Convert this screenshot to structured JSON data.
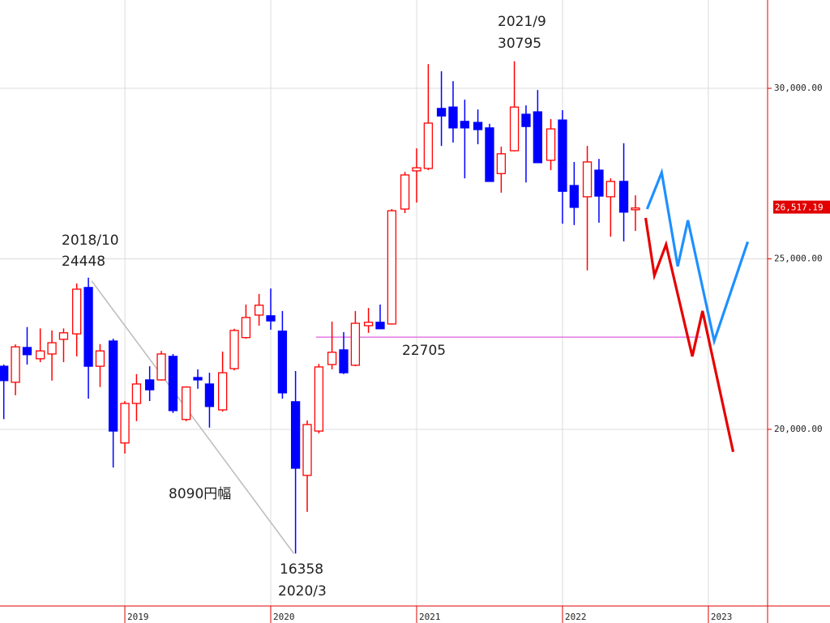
{
  "chart_data": {
    "type": "candlestick",
    "x": [
      2018.17,
      2018.25,
      2018.33,
      2018.42,
      2018.5,
      2018.58,
      2018.67,
      2018.75,
      2018.83,
      2018.92,
      2019,
      2019.08,
      2019.17,
      2019.25,
      2019.33,
      2019.42,
      2019.5,
      2019.58,
      2019.67,
      2019.75,
      2019.83,
      2019.92,
      2020,
      2020.08,
      2020.17,
      2020.25,
      2020.33,
      2020.42,
      2020.5,
      2020.58,
      2020.67,
      2020.75,
      2020.83,
      2020.92,
      2021,
      2021.08,
      2021.17,
      2021.25,
      2021.33,
      2021.42,
      2021.5,
      2021.58,
      2021.67,
      2021.75,
      2021.83,
      2021.92,
      2022,
      2022.08,
      2022.17,
      2022.25,
      2022.33,
      2022.42,
      2022.5
    ],
    "open": [
      21850,
      21380,
      22400,
      22070,
      22210,
      22640,
      22800,
      24160,
      21850,
      22590,
      19600,
      20760,
      21450,
      21450,
      22140,
      20290,
      21520,
      21330,
      20570,
      21780,
      22690,
      23350,
      23330,
      22880,
      20810,
      18650,
      19950,
      21900,
      22330,
      21880,
      23040,
      23140,
      23090,
      26460,
      27580,
      27650,
      29410,
      29450,
      29030,
      29000,
      28840,
      27500,
      28170,
      29240,
      29310,
      27890,
      29070,
      27150,
      26820,
      27600,
      26820,
      27270,
      26440
    ],
    "high": [
      21900,
      22490,
      23000,
      22960,
      22900,
      22960,
      24280,
      24448,
      22500,
      22660,
      20830,
      21620,
      21850,
      22300,
      22210,
      21260,
      21760,
      21660,
      22280,
      22950,
      23660,
      23970,
      24130,
      23470,
      21710,
      20260,
      21920,
      23160,
      22850,
      23470,
      23560,
      23660,
      26460,
      27550,
      28240,
      30710,
      30500,
      30210,
      29670,
      29380,
      28960,
      28290,
      30795,
      29500,
      29950,
      29100,
      29360,
      27840,
      28310,
      27930,
      27360,
      28390,
      26860
    ],
    "low": [
      20300,
      21000,
      21900,
      21970,
      21430,
      21970,
      22140,
      20900,
      21240,
      18880,
      19290,
      20240,
      20830,
      21430,
      20480,
      20240,
      21190,
      20050,
      20520,
      21730,
      22660,
      23040,
      22920,
      20900,
      16358,
      17580,
      19880,
      21760,
      21620,
      21850,
      22830,
      22950,
      23070,
      26340,
      26650,
      27600,
      28310,
      28410,
      27360,
      28360,
      27270,
      26940,
      28150,
      27240,
      27820,
      27600,
      26030,
      25990,
      24660,
      26060,
      25650,
      25510,
      25820
    ],
    "close": [
      21430,
      22420,
      22190,
      22300,
      22540,
      22830,
      24110,
      21850,
      22300,
      19950,
      20760,
      21330,
      21160,
      22210,
      20550,
      21240,
      21450,
      20670,
      21660,
      22900,
      23280,
      23640,
      23180,
      21070,
      18860,
      20140,
      21830,
      22260,
      21660,
      23110,
      23140,
      22950,
      26410,
      27460,
      27670,
      28980,
      29190,
      28840,
      28840,
      28790,
      27270,
      28080,
      29450,
      28880,
      27820,
      28810,
      26980,
      26510,
      27840,
      26840,
      27270,
      26370,
      26490
    ],
    "up_color": "#ff0000",
    "down_color": "#0000ff",
    "xlim": [
      2018.144,
      2023.406
    ],
    "xticks": [
      2019,
      2020,
      2021,
      2022,
      2023
    ],
    "ylim": [
      14820,
      32590
    ],
    "yticks": [
      {
        "value": 20000,
        "label": "20,000.00"
      },
      {
        "value": 25000,
        "label": "25,000.00"
      },
      {
        "value": 30000,
        "label": "30,000.00"
      }
    ],
    "grid": true,
    "last_price": {
      "value": 26517.19,
      "label": "26,517.19"
    },
    "hline": {
      "value": 22705,
      "x": [
        2020.31,
        2022.95
      ],
      "color": "#e060e0"
    },
    "range_line": {
      "from": "2018/10",
      "to": "2020/3"
    },
    "annotations": [
      "2018/10",
      "24448",
      "2021/9",
      "30795",
      "8090円幅",
      "16358",
      "2020/3"
    ],
    "forecasts": [
      {
        "color": "#1e90ff",
        "x": [
          2022.58,
          2022.68,
          2022.79,
          2022.86,
          2023.04,
          2023.27
        ],
        "values": [
          26460,
          27530,
          24780,
          26130,
          22590,
          25500
        ]
      },
      {
        "color": "#e60000",
        "x": [
          2022.57,
          2022.63,
          2022.71,
          2022.89,
          2022.96,
          2023.17
        ],
        "values": [
          26200,
          24510,
          25420,
          22140,
          23470,
          19340
        ]
      }
    ]
  }
}
